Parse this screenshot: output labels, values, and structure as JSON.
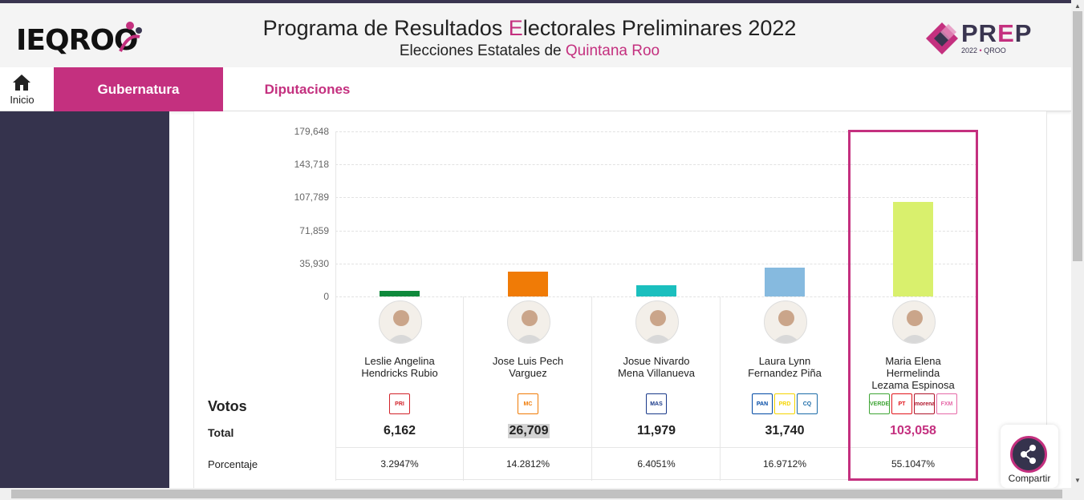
{
  "header": {
    "logo_text": "IEQROO",
    "title_part1": "Programa de Resultados ",
    "title_highlight": "E",
    "title_part2": "lectorales Preliminares 2022",
    "subtitle_part1": "Elecciones Estatales de ",
    "subtitle_highlight": "Quintana Roo",
    "prep_p1": "PR",
    "prep_e": "E",
    "prep_p2": "P",
    "prep_year": "2022",
    "prep_dot": "•",
    "prep_state": "QROO"
  },
  "nav": {
    "home_label": "Inicio",
    "tabs": [
      {
        "label": "Gubernatura",
        "active": true
      },
      {
        "label": "Diputaciones",
        "active": false
      }
    ]
  },
  "labels": {
    "votos": "Votos",
    "total": "Total",
    "porcentaje": "Porcentaje"
  },
  "share": {
    "label": "Compartir"
  },
  "colors": {
    "accent": "#c4307f",
    "sidebar": "#35334d"
  },
  "chart_data": {
    "type": "bar",
    "categories": [
      "Leslie Angelina Hendricks Rubio",
      "Jose Luis Pech Varguez",
      "Josue Nivardo Mena Villanueva",
      "Laura Lynn Fernandez Piña",
      "Maria Elena Hermelinda Lezama Espinosa"
    ],
    "values": [
      6162,
      26709,
      11979,
      31740,
      103058
    ],
    "colors": [
      "#0f8a3c",
      "#f07b06",
      "#1bbfbe",
      "#86badf",
      "#d9f06d"
    ],
    "ylim": [
      0,
      179648
    ],
    "yticks": [
      "179,648",
      "143,718",
      "107,789",
      "71,859",
      "35,930",
      "0"
    ],
    "grid": true
  },
  "candidates": [
    {
      "name_line1": "Leslie Angelina",
      "name_line2": "Hendricks Rubio",
      "name_line3": "",
      "votes": "6,162",
      "pct": "3.2947%",
      "parties": [
        {
          "abbr": "PRI",
          "color": "#d2232a"
        }
      ]
    },
    {
      "name_line1": "Jose Luis Pech",
      "name_line2": "Varguez",
      "name_line3": "",
      "votes": "26,709",
      "pct": "14.2812%",
      "parties": [
        {
          "abbr": "MC",
          "color": "#f07b06"
        }
      ]
    },
    {
      "name_line1": "Josue Nivardo",
      "name_line2": "Mena Villanueva",
      "name_line3": "",
      "votes": "11,979",
      "pct": "6.4051%",
      "parties": [
        {
          "abbr": "MAS",
          "color": "#1a3a8a"
        }
      ]
    },
    {
      "name_line1": "Laura Lynn",
      "name_line2": "Fernandez Piña",
      "name_line3": "",
      "votes": "31,740",
      "pct": "16.9712%",
      "parties": [
        {
          "abbr": "PAN",
          "color": "#0049a4"
        },
        {
          "abbr": "PRD",
          "color": "#f5d400"
        },
        {
          "abbr": "CQ",
          "color": "#1c6ca8"
        }
      ]
    },
    {
      "name_line1": "Maria Elena",
      "name_line2": "Hermelinda",
      "name_line3": "Lezama Espinosa",
      "votes": "103,058",
      "pct": "55.1047%",
      "parties": [
        {
          "abbr": "VERDE",
          "color": "#3fa535"
        },
        {
          "abbr": "PT",
          "color": "#e2151c"
        },
        {
          "abbr": "morena",
          "color": "#b0152b"
        },
        {
          "abbr": "FXM",
          "color": "#e66aa8"
        }
      ]
    }
  ]
}
